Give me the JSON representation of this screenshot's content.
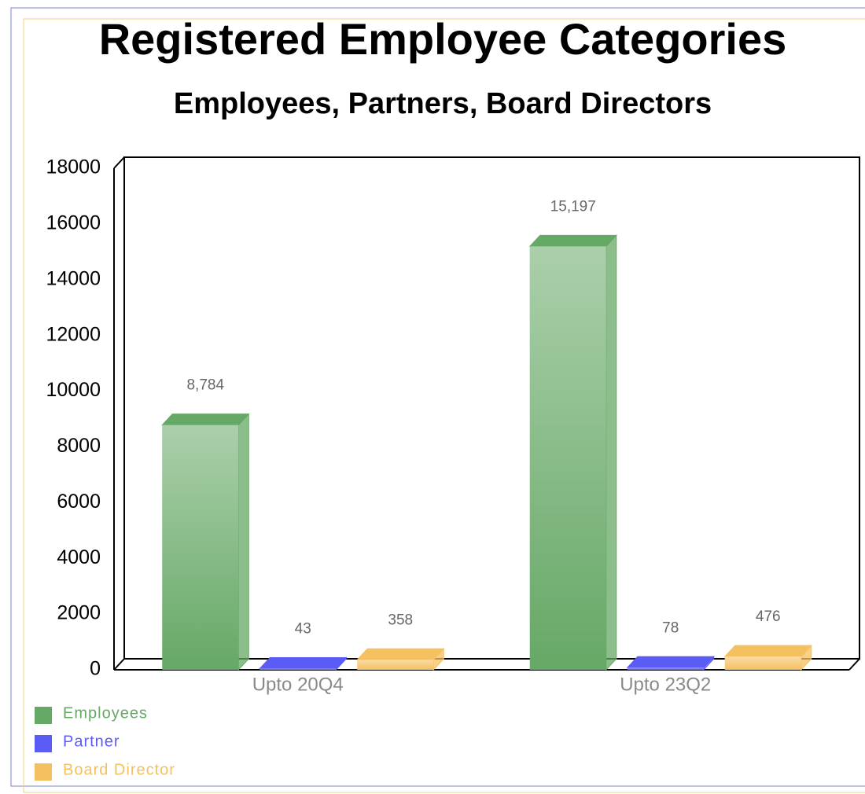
{
  "chart_data": {
    "type": "bar3d",
    "title": "Registered Employee Categories",
    "subtitle": "Employees, Partners, Board Directors",
    "categories": [
      "Upto 20Q4",
      "Upto 23Q2"
    ],
    "series": [
      {
        "name": "Employees",
        "color": "#66a866",
        "values": [
          8784,
          15197
        ],
        "value_labels": [
          "8,784",
          "15,197"
        ]
      },
      {
        "name": "Partner",
        "color": "#5b5bf5",
        "values": [
          43,
          78
        ]
      },
      {
        "name": "Board Director",
        "color": "#f5c060",
        "values": [
          358,
          476
        ]
      }
    ],
    "ylim": [
      0,
      18000
    ],
    "yticks": [
      0,
      2000,
      4000,
      6000,
      8000,
      10000,
      12000,
      14000,
      16000,
      18000
    ],
    "legend": "bottom-left"
  }
}
